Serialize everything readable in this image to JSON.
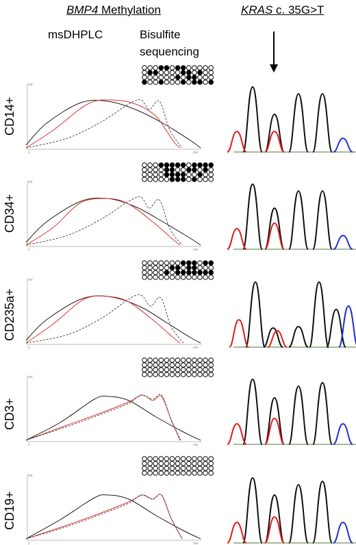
{
  "headers": {
    "bmp4_gene": "BMP4",
    "bmp4_rest": " Methylation",
    "kras_gene": "KRAS",
    "kras_rest": " c. 35G>T",
    "msdhplc": "msDHPLC",
    "bisulfite_line1": "Bisulfite",
    "bisulfite_line2": "sequencing"
  },
  "rows": [
    {
      "label": "CD14+",
      "methylation": [
        [
          0,
          0,
          0,
          1,
          1,
          0,
          1,
          1,
          0,
          0,
          0,
          0,
          0
        ],
        [
          0,
          1,
          1,
          0,
          0,
          0,
          0,
          1,
          1,
          0,
          1,
          0,
          0
        ],
        [
          0,
          0,
          0,
          0,
          0,
          0,
          1,
          0,
          1,
          1,
          0,
          0,
          0
        ],
        [
          1,
          0,
          0,
          1,
          0,
          0,
          0,
          1,
          0,
          1,
          1,
          0,
          1
        ]
      ]
    },
    {
      "label": "CD34+",
      "methylation": [
        [
          0,
          0,
          0,
          1,
          1,
          1,
          1,
          1,
          0,
          1,
          1,
          1,
          1
        ],
        [
          0,
          0,
          0,
          0,
          1,
          1,
          0,
          0,
          1,
          1,
          0,
          1,
          0
        ],
        [
          0,
          0,
          0,
          0,
          1,
          1,
          1,
          1,
          0,
          0,
          1,
          0,
          0
        ],
        [
          0,
          0,
          0,
          0,
          0,
          1,
          1,
          1,
          0,
          1,
          0,
          0,
          0
        ]
      ]
    },
    {
      "label": "CD235a+",
      "methylation": [
        [
          0,
          0,
          0,
          0,
          0,
          0,
          0,
          1,
          1,
          1,
          0,
          1,
          1
        ],
        [
          0,
          0,
          0,
          0,
          0,
          1,
          1,
          0,
          1,
          1,
          0,
          0,
          0
        ],
        [
          0,
          0,
          0,
          0,
          1,
          0,
          1,
          1,
          1,
          1,
          1,
          1,
          1
        ],
        [
          0,
          0,
          0,
          0,
          0,
          0,
          0,
          0,
          0,
          0,
          0,
          0,
          0
        ]
      ]
    },
    {
      "label": "CD3+",
      "methylation": [
        [
          0,
          0,
          0,
          0,
          0,
          0,
          0,
          0,
          0,
          0,
          0,
          0,
          0
        ],
        [
          0,
          0,
          0,
          0,
          0,
          0,
          0,
          0,
          0,
          0,
          0,
          0,
          0
        ],
        [
          0,
          0,
          0,
          0,
          0,
          0,
          0,
          0,
          0,
          0,
          0,
          0,
          0
        ],
        [
          0,
          0,
          0,
          0,
          0,
          0,
          0,
          0,
          0,
          0,
          0,
          0,
          0
        ]
      ]
    },
    {
      "label": "CD19+",
      "methylation": [
        [
          0,
          0,
          0,
          0,
          0,
          0,
          0,
          0,
          0,
          0,
          0,
          0,
          0
        ],
        [
          0,
          0,
          0,
          0,
          0,
          0,
          0,
          0,
          0,
          0,
          0,
          0,
          0
        ],
        [
          0,
          0,
          0,
          0,
          0,
          0,
          0,
          0,
          0,
          0,
          0,
          0,
          0
        ],
        [
          0,
          0,
          0,
          0,
          0,
          0,
          0,
          0,
          0,
          0,
          0,
          0,
          0
        ]
      ]
    }
  ],
  "axis": {
    "y_unit": "mV",
    "x_tick": "2",
    "x_unit": "min"
  },
  "colors": {
    "black_trace": "#1a1a1a",
    "red_trace": "#e0312c",
    "dashed_trace": "#4d4d4d",
    "kras_black": "#111111",
    "kras_red": "#e21b1b",
    "kras_blue": "#1f2fd6",
    "kras_green": "#1d8a2e"
  }
}
